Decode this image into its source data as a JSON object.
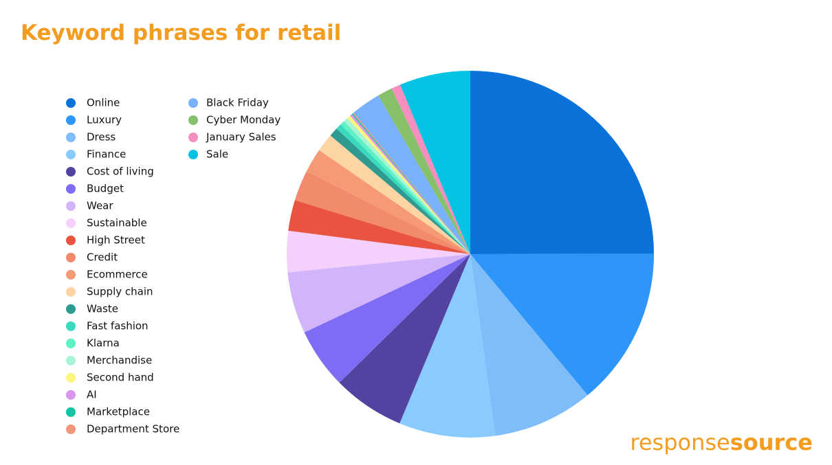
{
  "chart_data": {
    "type": "pie",
    "title": "Keyword phrases for retail",
    "categories": [
      "Online",
      "Luxury",
      "Dress",
      "Finance",
      "Cost of living",
      "Budget",
      "Wear",
      "Sustainable",
      "High Street",
      "Credit",
      "Ecommerce",
      "Supply chain",
      "Waste",
      "Fast fashion",
      "Klarna",
      "Merchandise",
      "Second hand",
      "AI",
      "Marketplace",
      "Department Store",
      "Black Friday",
      "Cyber Monday",
      "January Sales",
      "Sale"
    ],
    "values": [
      24.8,
      13.9,
      8.8,
      8.4,
      6.3,
      5.3,
      5.4,
      3.6,
      2.7,
      2.7,
      2.1,
      1.6,
      0.8,
      0.5,
      0.4,
      0.4,
      0.3,
      0.2,
      0.1,
      0.1,
      2.6,
      1.3,
      0.8,
      6.2
    ],
    "colors": [
      "#0b72d9",
      "#2f96f9",
      "#7fbcfa",
      "#8acbff",
      "#5342a0",
      "#7e6cf4",
      "#d2b4fb",
      "#f5d0fc",
      "#e8543f",
      "#f28b6b",
      "#f69a75",
      "#fdd4a4",
      "#2f9a90",
      "#3cd9c1",
      "#5ef1c6",
      "#a8f4d5",
      "#fdf57d",
      "#d996ec",
      "#12c3a5",
      "#f0967b",
      "#79b2fa",
      "#86c06a",
      "#f68fc0",
      "#05c3e2"
    ],
    "legend_position": "left"
  },
  "brand": {
    "light": "response",
    "bold": "source"
  }
}
